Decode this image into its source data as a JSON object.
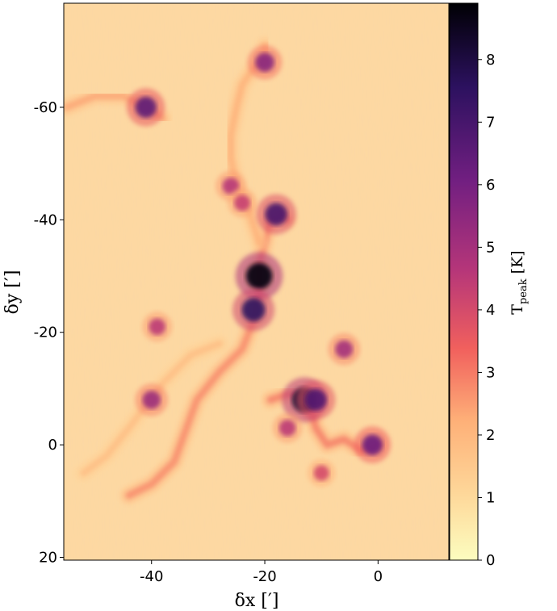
{
  "chart_data": {
    "type": "heatmap",
    "title": "",
    "xlabel": "δx [′]",
    "ylabel": "δy [′]",
    "xlim": [
      -55.5,
      12.5
    ],
    "ylim": [
      20.5,
      -78.5
    ],
    "x_ticks": [
      -40,
      -20,
      0
    ],
    "x_tick_labels": [
      "-40",
      "-20",
      "0"
    ],
    "y_ticks": [
      -60,
      -40,
      -20,
      0,
      20
    ],
    "y_tick_labels": [
      "-60",
      "-40",
      "-20",
      "0",
      "20"
    ],
    "colorbar": {
      "label": "T_peak [K]",
      "label_main": "T",
      "label_sub": "peak",
      "label_unit": " [K]",
      "range": [
        0,
        8.9
      ],
      "ticks": [
        0,
        1,
        2,
        3,
        4,
        5,
        6,
        7,
        8
      ],
      "tick_labels": [
        "0",
        "1",
        "2",
        "3",
        "4",
        "5",
        "6",
        "7",
        "8"
      ],
      "colormap": "magma_r",
      "colors": [
        "#fcfdbf",
        "#feb078",
        "#f1605d",
        "#b63679",
        "#721f81",
        "#2c115f",
        "#000004"
      ]
    },
    "background_level": 0.8,
    "features": [
      {
        "name": "filament-spine",
        "points": [
          [
            -44,
            9
          ],
          [
            -40,
            7
          ],
          [
            -36,
            3
          ],
          [
            -32,
            -8
          ],
          [
            -28,
            -13
          ],
          [
            -24,
            -17
          ],
          [
            -22,
            -22
          ],
          [
            -21,
            -27
          ],
          [
            -21,
            -32
          ],
          [
            -20,
            -36
          ],
          [
            -19,
            -40
          ],
          [
            -17,
            -41
          ],
          [
            -16,
            -40
          ]
        ],
        "value": 2.8
      },
      {
        "name": "northern-arm",
        "points": [
          [
            -21,
            -36
          ],
          [
            -23,
            -42
          ],
          [
            -25,
            -46
          ],
          [
            -26,
            -51
          ],
          [
            -26,
            -55
          ],
          [
            -25,
            -60
          ],
          [
            -24,
            -64
          ],
          [
            -22,
            -67
          ],
          [
            -20,
            -68
          ],
          [
            -20,
            -71
          ]
        ],
        "value": 2.2
      },
      {
        "name": "west-cloud",
        "points": [
          [
            -55,
            -60
          ],
          [
            -50,
            -62
          ],
          [
            -45,
            -62
          ],
          [
            -41,
            -60
          ],
          [
            -38,
            -58
          ]
        ],
        "value": 2.4
      },
      {
        "name": "southwest-tail",
        "points": [
          [
            -52,
            5
          ],
          [
            -48,
            2
          ],
          [
            -44,
            -3
          ],
          [
            -38,
            -11
          ],
          [
            -33,
            -16
          ],
          [
            -28,
            -18
          ]
        ],
        "value": 1.8
      },
      {
        "name": "eastern-clump",
        "points": [
          [
            -19,
            -8
          ],
          [
            -16,
            -9
          ],
          [
            -14,
            -9
          ],
          [
            -12,
            -7
          ],
          [
            -11,
            -3
          ],
          [
            -9,
            0
          ],
          [
            -6,
            -1
          ],
          [
            -3,
            1
          ],
          [
            0,
            0
          ]
        ],
        "value": 3.0
      }
    ],
    "peaks": [
      {
        "x": -21,
        "y": -30,
        "value": 8.8
      },
      {
        "x": -22,
        "y": -24,
        "value": 7.5
      },
      {
        "x": -13,
        "y": -8,
        "value": 8.2
      },
      {
        "x": -11,
        "y": -8,
        "value": 6.8
      },
      {
        "x": -18,
        "y": -41,
        "value": 7.0
      },
      {
        "x": -41,
        "y": -60,
        "value": 6.5
      },
      {
        "x": -20,
        "y": -68,
        "value": 5.6
      },
      {
        "x": -1,
        "y": 0,
        "value": 6.2
      },
      {
        "x": -6,
        "y": -17,
        "value": 5.0
      },
      {
        "x": -40,
        "y": -8,
        "value": 5.2
      },
      {
        "x": -39,
        "y": -21,
        "value": 4.5
      },
      {
        "x": -26,
        "y": -46,
        "value": 4.6
      },
      {
        "x": -24,
        "y": -43,
        "value": 4.3
      },
      {
        "x": -16,
        "y": -3,
        "value": 4.5
      },
      {
        "x": -10,
        "y": 5,
        "value": 4.0
      }
    ]
  }
}
